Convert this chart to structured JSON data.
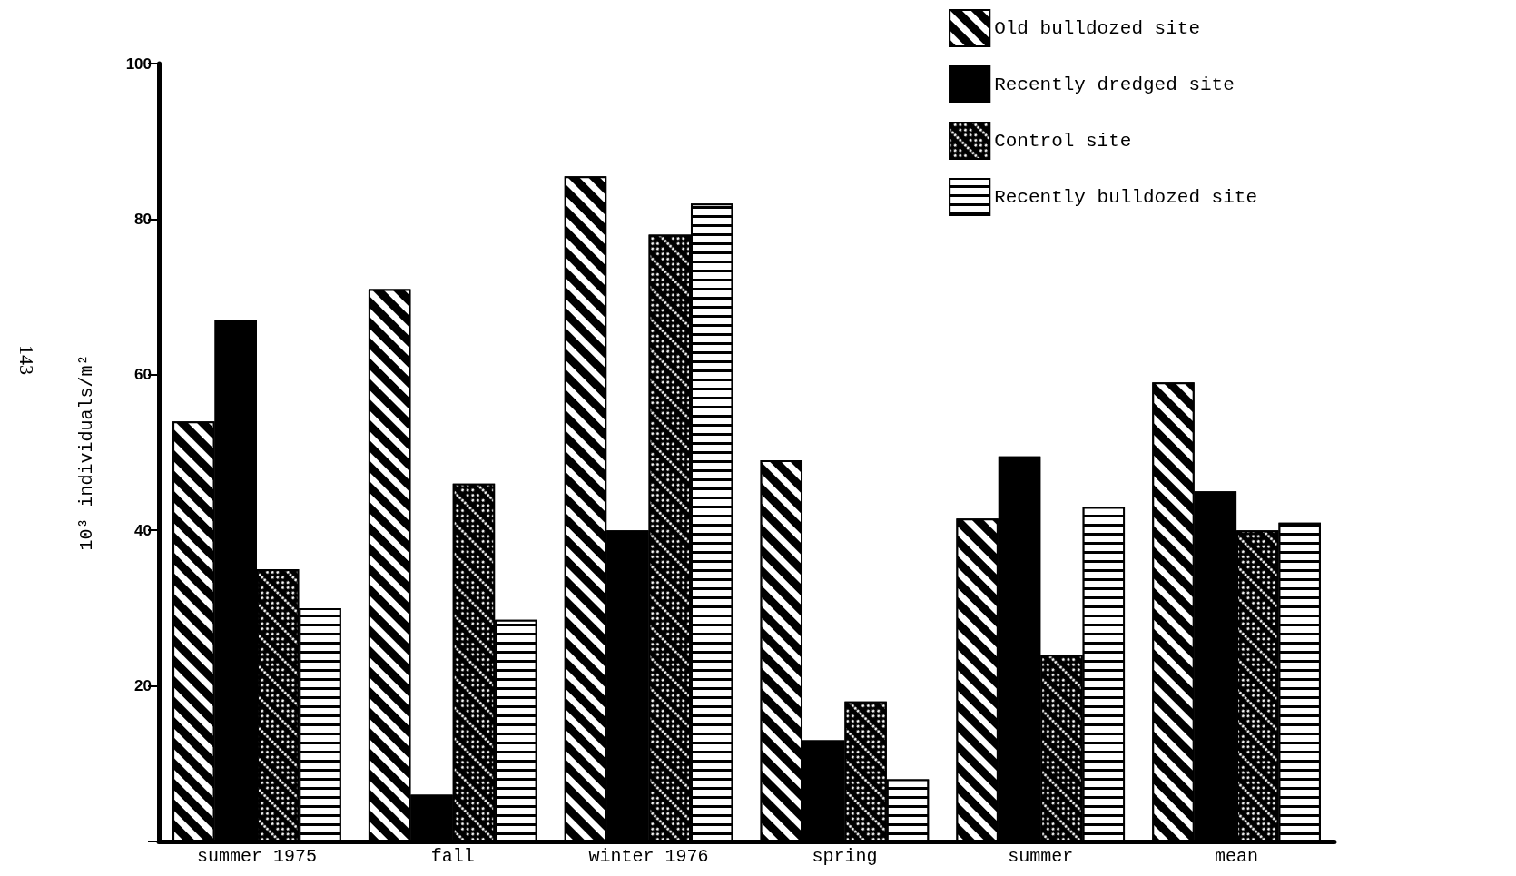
{
  "chart_data": {
    "type": "bar",
    "ylabel": "10³ individuals/m²",
    "categories": [
      "summer 1975",
      "fall",
      "winter 1976",
      "spring",
      "summer",
      "mean"
    ],
    "series": [
      {
        "name": "Old bulldozed site",
        "color": "#000000",
        "values": [
          54,
          71,
          85.5,
          49,
          41.5,
          59
        ]
      },
      {
        "name": "Recently dredged site",
        "color": "#000000",
        "values": [
          67,
          6,
          40,
          13,
          49.5,
          45
        ]
      },
      {
        "name": "Control site",
        "color": "#000000",
        "values": [
          35,
          46,
          78,
          18,
          24,
          40
        ]
      },
      {
        "name": "Recently bulldozed site",
        "color": "#000000",
        "values": [
          30,
          28.5,
          82,
          8,
          43,
          41
        ]
      }
    ],
    "ylim": [
      0,
      100
    ],
    "yticks": [
      {
        "value": 0,
        "label": null
      },
      20,
      40,
      60,
      80,
      100
    ],
    "grid": false,
    "legend": "top right",
    "annotations": [
      "143"
    ]
  }
}
